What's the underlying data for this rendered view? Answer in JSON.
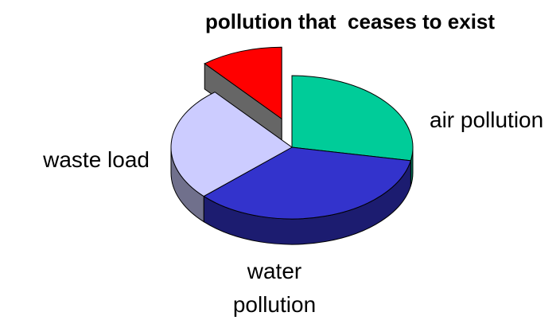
{
  "chart_data": {
    "type": "pie3d",
    "title": "pollution that  ceases to exist",
    "categories": [
      "air pollution",
      "water pollution",
      "waste load",
      null
    ],
    "values": [
      28,
      35,
      26,
      11
    ],
    "colors": [
      "#00cc99",
      "#3333cc",
      "#ccccff",
      "#ff0000"
    ],
    "exploded": [
      false,
      false,
      false,
      true
    ]
  }
}
